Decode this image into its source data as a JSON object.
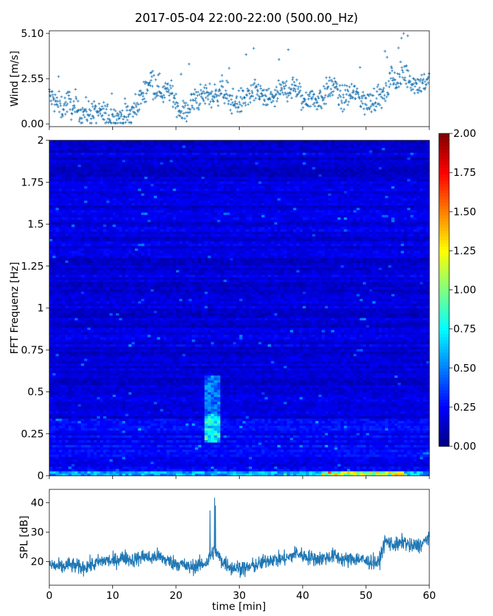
{
  "title": "2017-05-04 22:00-22:00 (500.00_Hz)",
  "colors": {
    "series": "#1f77b4",
    "colormap": "jet",
    "axes": "#000000",
    "background": "#ffffff"
  },
  "chart_data": [
    {
      "id": "wind",
      "type": "scatter",
      "ylabel": "Wind [m/s]",
      "xlim": [
        0,
        60
      ],
      "ylim": [
        -0.15,
        5.25
      ],
      "yticks": [
        0.0,
        2.55,
        5.1
      ],
      "ytick_labels": [
        "0.00",
        "2.55",
        "5.10"
      ],
      "marker": "+",
      "x": [
        0,
        1,
        2,
        3,
        4,
        5,
        6,
        7,
        8,
        9,
        10,
        11,
        12,
        13,
        14,
        15,
        16,
        17,
        18,
        19,
        20,
        21,
        22,
        23,
        24,
        25,
        26,
        27,
        28,
        29,
        30,
        31,
        32,
        33,
        34,
        35,
        36,
        37,
        38,
        39,
        40,
        41,
        42,
        43,
        44,
        45,
        46,
        47,
        48,
        49,
        50,
        51,
        52,
        53,
        54,
        55,
        56,
        57,
        58,
        59,
        60
      ],
      "y": [
        1.6,
        1.2,
        0.9,
        1.3,
        0.7,
        0.7,
        0.65,
        0.6,
        0.6,
        0.5,
        0.45,
        0.4,
        0.4,
        0.55,
        1.2,
        1.8,
        2.6,
        2.1,
        1.8,
        1.9,
        1.2,
        0.6,
        0.9,
        1.4,
        1.5,
        1.7,
        1.5,
        2.0,
        1.7,
        1.2,
        1.2,
        1.5,
        1.6,
        1.9,
        1.3,
        1.5,
        1.6,
        1.9,
        2.0,
        2.1,
        1.2,
        1.6,
        1.3,
        1.5,
        1.9,
        2.2,
        1.3,
        1.6,
        1.7,
        1.6,
        1.1,
        1.3,
        1.6,
        1.5,
        2.7,
        2.3,
        2.9,
        2.5,
        2.2,
        2.4,
        2.3
      ]
    },
    {
      "id": "spectrogram",
      "type": "heatmap",
      "ylabel": "FFT Frequenz [Hz]",
      "xlim": [
        0,
        60
      ],
      "ylim": [
        0,
        2
      ],
      "yticks": [
        0,
        0.25,
        0.5,
        0.75,
        1,
        1.25,
        1.5,
        1.75,
        2
      ],
      "ytick_labels": [
        "0",
        "0.25",
        "0.5",
        "0.75",
        "1",
        "1.25",
        "1.5",
        "1.75",
        "2"
      ],
      "colorbar": {
        "range": [
          0,
          2
        ],
        "ticks": [
          0,
          0.25,
          0.5,
          0.75,
          1,
          1.25,
          1.5,
          1.75,
          2
        ],
        "tick_labels": [
          "0.00",
          "0.25",
          "0.50",
          "0.75",
          "1.00",
          "1.25",
          "1.50",
          "1.75",
          "2.00"
        ]
      },
      "bands": [
        {
          "x_range": [
            24.5,
            27.0
          ],
          "f_range": [
            0.2,
            0.35
          ],
          "level": 0.85
        },
        {
          "x_range": [
            24.5,
            27.0
          ],
          "f_range": [
            0.35,
            0.6
          ],
          "level": 0.55
        },
        {
          "x_range": [
            0,
            60
          ],
          "f_range": [
            0.0,
            0.03
          ],
          "level": 0.7
        },
        {
          "x_range": [
            43,
            56
          ],
          "f_range": [
            0.0,
            0.03
          ],
          "level": 1.3
        }
      ]
    },
    {
      "id": "spl",
      "type": "line",
      "ylabel": "SPL [dB]",
      "xlabel": "time [min]",
      "xlim": [
        0,
        60
      ],
      "ylim": [
        12,
        44.5
      ],
      "yticks": [
        20,
        30,
        40
      ],
      "ytick_labels": [
        "20",
        "30",
        "40"
      ],
      "xticks": [
        0,
        10,
        20,
        30,
        40,
        50,
        60
      ],
      "xtick_labels": [
        "0",
        "10",
        "20",
        "30",
        "40",
        "50",
        "60"
      ],
      "x": [
        0,
        1,
        2,
        3,
        4,
        5,
        6,
        7,
        8,
        9,
        10,
        11,
        12,
        13,
        14,
        15,
        16,
        17,
        18,
        19,
        20,
        21,
        22,
        23,
        24,
        25,
        26,
        27,
        28,
        29,
        30,
        31,
        32,
        33,
        34,
        35,
        36,
        37,
        38,
        39,
        40,
        41,
        42,
        43,
        44,
        45,
        46,
        47,
        48,
        49,
        50,
        51,
        52,
        53,
        54,
        55,
        56,
        57,
        58,
        59,
        60
      ],
      "y": [
        19,
        18.5,
        18,
        19,
        18.5,
        18,
        18.5,
        19,
        20,
        20.5,
        20,
        21,
        21.5,
        20.5,
        21,
        22,
        21,
        22,
        21,
        20,
        19.5,
        19,
        18,
        18.5,
        19,
        20,
        24,
        21,
        19,
        18,
        18,
        17.5,
        18.5,
        19,
        20,
        21,
        20.5,
        21,
        21.5,
        23,
        22,
        21.5,
        21,
        21,
        21.5,
        22,
        21,
        20.5,
        21,
        21,
        20,
        20,
        19.5,
        27,
        26,
        25.5,
        27,
        25,
        25.5,
        26,
        29
      ]
    }
  ]
}
